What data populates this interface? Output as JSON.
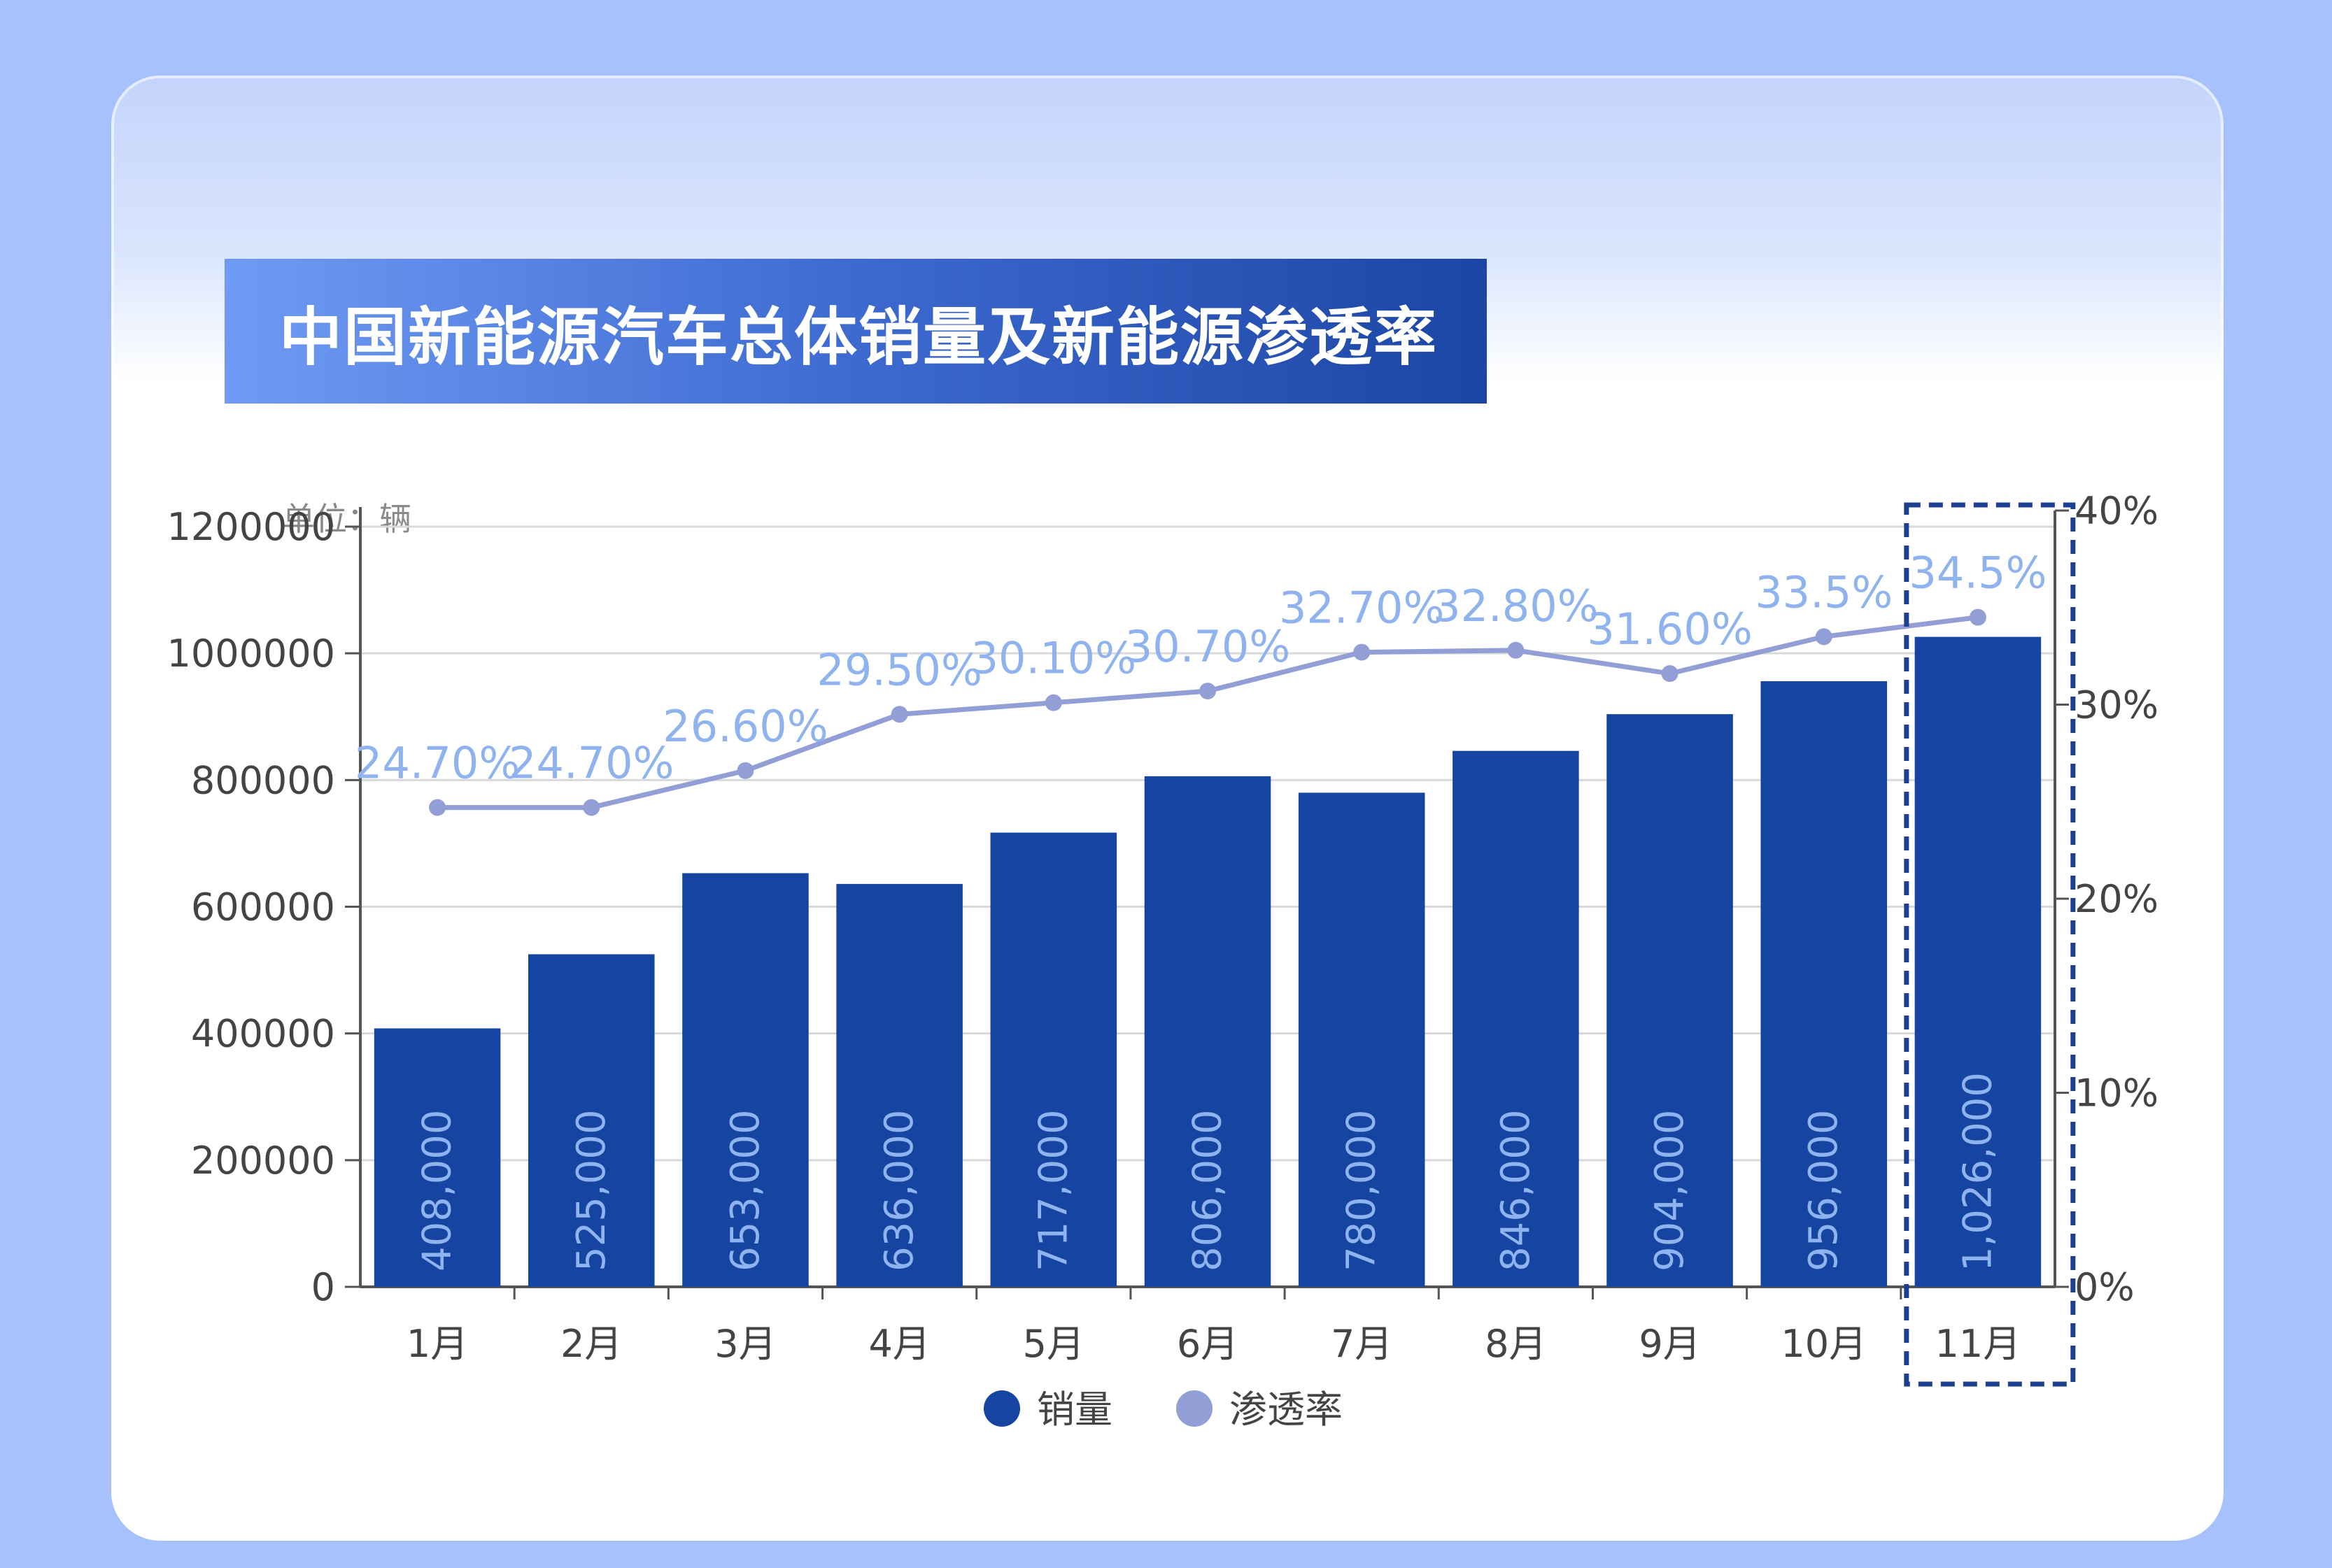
{
  "title": "中国新能源汽车总体销量及新能源渗透率",
  "unit_label": "单位：辆",
  "colors": {
    "bar": "#1545a0",
    "line": "#919fd6",
    "label": "#8fb3ee",
    "highlight_box": "#1c3f8f"
  },
  "chart_data": {
    "type": "bar",
    "categories": [
      "1月",
      "2月",
      "3月",
      "4月",
      "5月",
      "6月",
      "7月",
      "8月",
      "9月",
      "10月",
      "11月"
    ],
    "series": [
      {
        "name": "销量",
        "type": "bar",
        "axis": "left",
        "values": [
          408000,
          525000,
          653000,
          636000,
          717000,
          806000,
          780000,
          846000,
          904000,
          956000,
          1026000
        ],
        "labels": [
          "408,000",
          "525,000",
          "653,000",
          "636,000",
          "717,000",
          "806,000",
          "780,000",
          "846,000",
          "904,000",
          "956,000",
          "1,026,000"
        ]
      },
      {
        "name": "渗透率",
        "type": "line",
        "axis": "right",
        "values": [
          24.7,
          24.7,
          26.6,
          29.5,
          30.1,
          30.7,
          32.7,
          32.8,
          31.6,
          33.5,
          34.5
        ],
        "labels": [
          "24.70%",
          "24.70%",
          "26.60%",
          "29.50%",
          "30.10%",
          "30.70%",
          "32.70%",
          "32.80%",
          "31.60%",
          "33.5%",
          "34.5%"
        ]
      }
    ],
    "y_left": {
      "ylim": [
        0,
        1200000
      ],
      "ticks": [
        0,
        200000,
        400000,
        600000,
        800000,
        1000000,
        1200000
      ],
      "tick_labels": [
        "0",
        "200000",
        "400000",
        "600000",
        "800000",
        "1000000",
        "1200000"
      ]
    },
    "y_right": {
      "ylim": [
        0,
        40
      ],
      "ticks": [
        0,
        10,
        20,
        30,
        40
      ],
      "tick_labels": [
        "0%",
        "10%",
        "20%",
        "30%",
        "40%"
      ]
    },
    "grid": true,
    "legend": {
      "position": "bottom-center",
      "entries": [
        "销量",
        "渗透率"
      ]
    },
    "highlight_category": "11月"
  }
}
